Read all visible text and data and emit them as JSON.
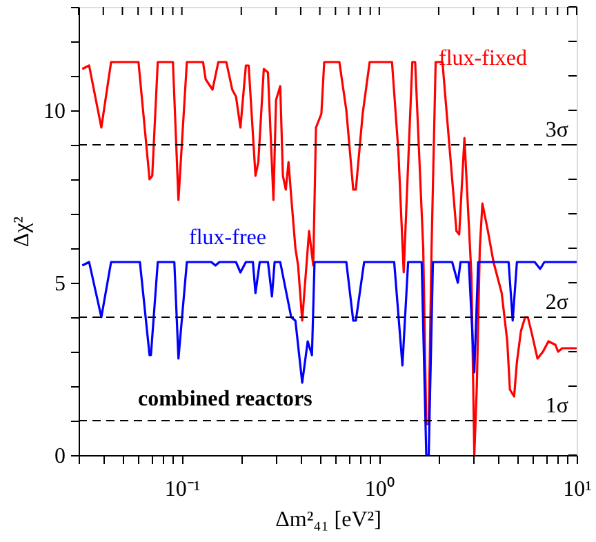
{
  "chart_data": {
    "type": "line",
    "xlabel": "Δm²₄₁ [eV²]",
    "ylabel": "Δχ²",
    "log": "x",
    "grid": false,
    "marker": "none",
    "line_style": "solid",
    "xlim": [
      0.03,
      10
    ],
    "ylim": [
      0,
      13
    ],
    "xticks": [
      {
        "value": 0.03,
        "label": null
      },
      {
        "value": 0.04,
        "label": null
      },
      {
        "value": 0.05,
        "label": null
      },
      {
        "value": 0.06,
        "label": null
      },
      {
        "value": 0.07,
        "label": null
      },
      {
        "value": 0.08,
        "label": null
      },
      {
        "value": 0.09,
        "label": null
      },
      {
        "value": 0.1,
        "label": "10⁻¹"
      },
      {
        "value": 0.2,
        "label": null
      },
      {
        "value": 0.3,
        "label": null
      },
      {
        "value": 0.4,
        "label": null
      },
      {
        "value": 0.5,
        "label": null
      },
      {
        "value": 0.6,
        "label": null
      },
      {
        "value": 0.7,
        "label": null
      },
      {
        "value": 0.8,
        "label": null
      },
      {
        "value": 0.9,
        "label": null
      },
      {
        "value": 1,
        "label": "10⁰"
      },
      {
        "value": 2,
        "label": null
      },
      {
        "value": 3,
        "label": null
      },
      {
        "value": 4,
        "label": null
      },
      {
        "value": 5,
        "label": null
      },
      {
        "value": 6,
        "label": null
      },
      {
        "value": 7,
        "label": null
      },
      {
        "value": 8,
        "label": null
      },
      {
        "value": 9,
        "label": null
      },
      {
        "value": 10,
        "label": "10¹"
      }
    ],
    "yticks": [
      0,
      {
        "value": 1,
        "label": null
      },
      {
        "value": 2,
        "label": null
      },
      {
        "value": 3,
        "label": null
      },
      {
        "value": 4,
        "label": null
      },
      5,
      {
        "value": 6,
        "label": null
      },
      {
        "value": 7,
        "label": null
      },
      {
        "value": 8,
        "label": null
      },
      {
        "value": 9,
        "label": null
      },
      10,
      {
        "value": 11,
        "label": null
      },
      {
        "value": 12,
        "label": null
      },
      {
        "value": 13,
        "label": null
      }
    ],
    "series": [
      {
        "name": "flux-fixed",
        "color": "#ff0000",
        "x": [
          0.0313,
          0.0339,
          0.0391,
          0.0438,
          0.0603,
          0.0686,
          0.0708,
          0.0755,
          0.0901,
          0.0961,
          0.106,
          0.128,
          0.132,
          0.143,
          0.153,
          0.168,
          0.18,
          0.188,
          0.198,
          0.211,
          0.218,
          0.236,
          0.244,
          0.26,
          0.273,
          0.291,
          0.3,
          0.315,
          0.325,
          0.336,
          0.347,
          0.358,
          0.376,
          0.388,
          0.407,
          0.441,
          0.463,
          0.478,
          0.509,
          0.526,
          0.628,
          0.681,
          0.738,
          0.761,
          0.824,
          0.894,
          1.16,
          1.25,
          1.33,
          1.47,
          1.52,
          1.67,
          1.73,
          1.78,
          1.84,
          1.93,
          2.09,
          2.46,
          2.54,
          2.7,
          2.93,
          3.03,
          3.12,
          3.23,
          3.33,
          3.55,
          3.79,
          4.17,
          4.45,
          4.59,
          4.82,
          4.98,
          5.22,
          5.48,
          5.66,
          5.94,
          6.33,
          6.75,
          7.19,
          7.8,
          8.05,
          8.45,
          9.16,
          10
        ],
        "values": [
          11.2,
          11.3,
          9.5,
          11.4,
          11.4,
          8.0,
          8.1,
          11.4,
          11.4,
          7.4,
          11.4,
          11.4,
          10.9,
          10.6,
          11.4,
          11.4,
          10.6,
          10.4,
          9.5,
          11.3,
          11.3,
          8.1,
          8.5,
          11.2,
          11.1,
          7.4,
          10.3,
          10.7,
          8.1,
          7.7,
          8.5,
          7.5,
          6.0,
          5.5,
          3.9,
          6.5,
          5.5,
          9.5,
          9.9,
          11.4,
          11.4,
          10.0,
          7.7,
          7.7,
          9.9,
          11.4,
          11.4,
          8.8,
          5.3,
          11.4,
          11.4,
          6.0,
          0.9,
          0.9,
          6.0,
          11.4,
          11.4,
          6.5,
          6.4,
          9.2,
          5.2,
          0,
          2.0,
          6.0,
          7.3,
          6.5,
          5.6,
          4.7,
          3.3,
          1.9,
          1.7,
          2.7,
          3.6,
          4.0,
          4.0,
          3.5,
          2.8,
          3.0,
          3.3,
          3.2,
          3.0,
          3.1,
          3.1,
          3.1
        ]
      },
      {
        "name": "flux-free",
        "color": "#0000ff",
        "x": [
          0.0313,
          0.0339,
          0.0391,
          0.0438,
          0.0613,
          0.0686,
          0.0697,
          0.0755,
          0.0916,
          0.0961,
          0.106,
          0.141,
          0.148,
          0.155,
          0.188,
          0.198,
          0.211,
          0.229,
          0.236,
          0.248,
          0.273,
          0.286,
          0.295,
          0.315,
          0.358,
          0.376,
          0.407,
          0.434,
          0.456,
          0.47,
          0.681,
          0.738,
          0.761,
          0.838,
          1.19,
          1.31,
          1.4,
          1.64,
          1.73,
          1.78,
          1.87,
          2.34,
          2.5,
          2.58,
          2.84,
          3.03,
          3.17,
          4.52,
          4.74,
          4.98,
          6.13,
          6.53,
          6.86,
          10
        ],
        "values": [
          5.5,
          5.6,
          4.0,
          5.6,
          5.6,
          2.9,
          2.9,
          5.6,
          5.6,
          2.8,
          5.6,
          5.6,
          5.5,
          5.6,
          5.6,
          5.3,
          5.6,
          5.6,
          4.7,
          5.6,
          5.6,
          4.6,
          5.6,
          5.6,
          4.0,
          3.9,
          2.1,
          3.3,
          2.9,
          5.6,
          5.6,
          3.9,
          3.9,
          5.6,
          5.6,
          2.6,
          5.6,
          5.6,
          0,
          0,
          5.6,
          5.6,
          5.0,
          5.6,
          5.6,
          2.4,
          5.6,
          5.6,
          3.9,
          5.6,
          5.6,
          5.4,
          5.6,
          5.6
        ]
      }
    ],
    "ref_lines": [
      {
        "axis": "y",
        "value": 9,
        "label": "3σ",
        "color": "#000000",
        "line_style": "dashed"
      },
      {
        "axis": "y",
        "value": 4,
        "label": "2σ",
        "color": "#000000",
        "line_style": "dashed"
      },
      {
        "axis": "y",
        "value": 1,
        "label": "1σ",
        "color": "#000000",
        "line_style": "dashed"
      }
    ],
    "annotations": [
      "combined reactors"
    ]
  }
}
